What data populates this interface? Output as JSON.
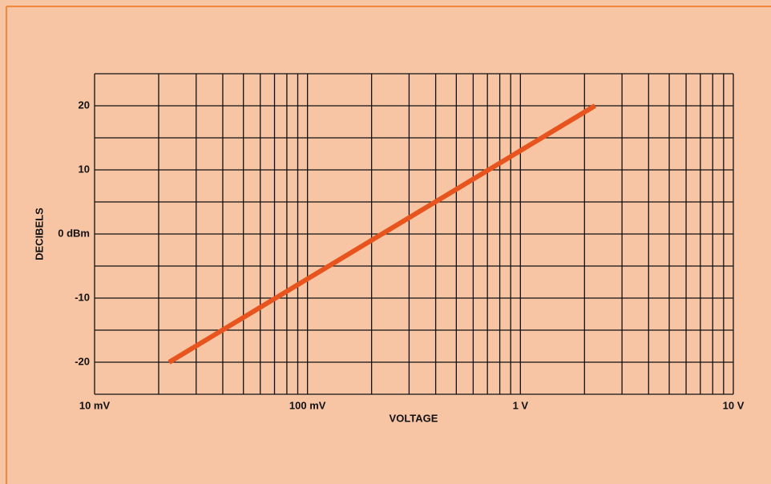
{
  "chart_data": {
    "type": "line",
    "xlabel": "VOLTAGE",
    "ylabel": "DECIBELS",
    "xscale": "log",
    "xlim": [
      0.01,
      10
    ],
    "xticks": [
      {
        "value": 0.01,
        "label": "10 mV"
      },
      {
        "value": 0.1,
        "label": "100 mV"
      },
      {
        "value": 1,
        "label": "1 V"
      },
      {
        "value": 10,
        "label": "10 V"
      }
    ],
    "xgrid_minor": [
      0.02,
      0.03,
      0.04,
      0.05,
      0.06,
      0.07,
      0.08,
      0.09,
      0.2,
      0.3,
      0.4,
      0.5,
      0.6,
      0.7,
      0.8,
      0.9,
      2,
      3,
      4,
      5,
      6,
      7,
      8,
      9
    ],
    "ylim": [
      -25,
      25
    ],
    "yticks": [
      20,
      10,
      {
        "value": 0,
        "label": "0 dBm"
      },
      -10,
      -20
    ],
    "ygrid_minor": [
      25,
      15,
      5,
      -5,
      -15,
      -25
    ],
    "grid": true,
    "series": [
      {
        "color": "#e8541e",
        "x": [
          0.0224,
          2.24
        ],
        "values": [
          -20,
          20
        ]
      }
    ]
  }
}
